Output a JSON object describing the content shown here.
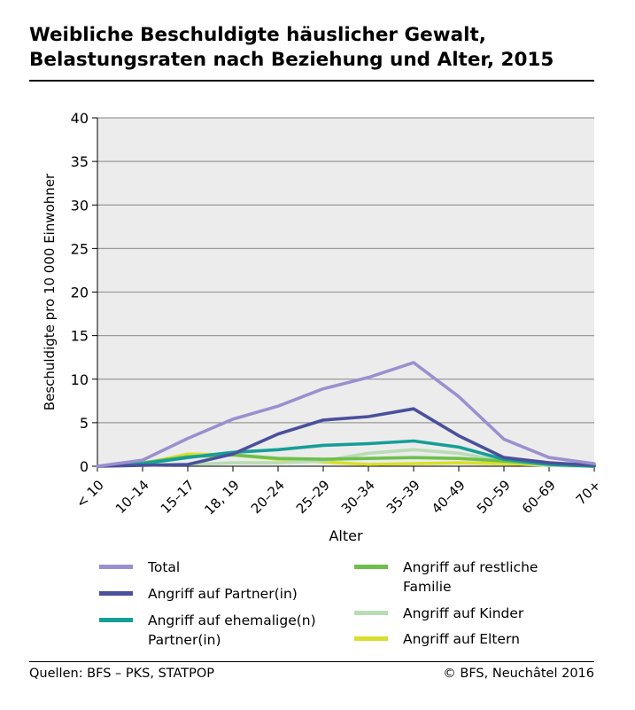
{
  "title_line1": "Weibliche Beschuldigte häuslicher Gewalt,",
  "title_line2": "Belastungsraten nach Beziehung und Alter, 2015",
  "source": "Quellen: BFS – PKS, STATPOP",
  "copyright": "© BFS, Neuchâtel 2016",
  "chart_data": {
    "type": "line",
    "title": "Weibliche Beschuldigte häuslicher Gewalt, Belastungsraten nach Beziehung und Alter, 2015",
    "xlabel": "Alter",
    "ylabel": "Beschuldigte pro 10 000 Einwohner",
    "ylim": [
      0,
      40
    ],
    "yticks": [
      0,
      5,
      10,
      15,
      20,
      25,
      30,
      35,
      40
    ],
    "grid": true,
    "legend_position": "bottom",
    "plot_background": "#ececec",
    "categories": [
      "< 10",
      "10–14",
      "15–17",
      "18, 19",
      "20–24",
      "25–29",
      "30–34",
      "35–39",
      "40–49",
      "50–59",
      "60–69",
      "70+"
    ],
    "series": [
      {
        "name": "Total",
        "color": "#9b8fcf",
        "values": [
          0,
          0.7,
          3.2,
          5.4,
          6.9,
          8.9,
          10.2,
          11.9,
          8.0,
          3.1,
          1.0,
          0.3
        ]
      },
      {
        "name": "Angriff auf Partner(in)",
        "color": "#4b4f9c",
        "values": [
          0,
          0.1,
          0.2,
          1.4,
          3.7,
          5.3,
          5.7,
          6.6,
          3.5,
          1.0,
          0.4,
          0.1
        ]
      },
      {
        "name": "Angriff auf ehemalige(n) Partner(in)",
        "color": "#159e97",
        "values": [
          0,
          0.3,
          1.0,
          1.6,
          1.9,
          2.4,
          2.6,
          2.9,
          2.2,
          0.8,
          0.2,
          0
        ]
      },
      {
        "name": "Angriff auf restliche Familie",
        "color": "#6dbf4c",
        "values": [
          0,
          0.4,
          1.1,
          1.3,
          0.9,
          0.8,
          0.9,
          1.0,
          0.9,
          0.6,
          0.2,
          0
        ]
      },
      {
        "name": "Angriff auf Kinder",
        "color": "#b8dcb4",
        "values": [
          0,
          0.2,
          0.2,
          0.4,
          0.4,
          0.6,
          1.5,
          1.9,
          1.5,
          0.6,
          0.1,
          0
        ]
      },
      {
        "name": "Angriff auf Eltern",
        "color": "#d8df2c",
        "values": [
          0,
          0.3,
          1.4,
          1.3,
          0.8,
          0.5,
          0.2,
          0.3,
          0.4,
          0.3,
          0.1,
          0
        ]
      }
    ]
  }
}
